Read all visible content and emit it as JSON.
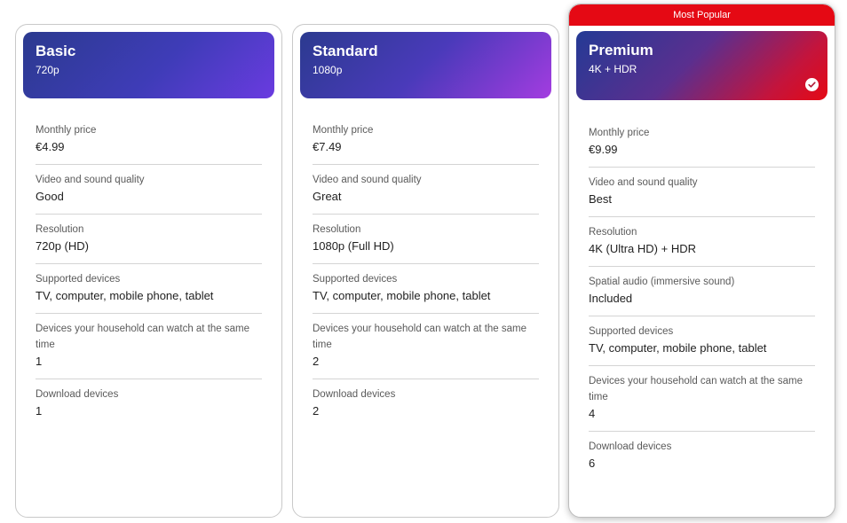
{
  "plans": [
    {
      "name": "Basic",
      "resolution_short": "720p",
      "features": [
        {
          "label": "Monthly price",
          "value": "€4.99"
        },
        {
          "label": "Video and sound quality",
          "value": "Good"
        },
        {
          "label": "Resolution",
          "value": "720p (HD)"
        },
        {
          "label": "Supported devices",
          "value": "TV, computer, mobile phone, tablet"
        },
        {
          "label": "Devices your household can watch at the same time",
          "value": "1"
        },
        {
          "label": "Download devices",
          "value": "1"
        }
      ]
    },
    {
      "name": "Standard",
      "resolution_short": "1080p",
      "features": [
        {
          "label": "Monthly price",
          "value": "€7.49"
        },
        {
          "label": "Video and sound quality",
          "value": "Great"
        },
        {
          "label": "Resolution",
          "value": "1080p (Full HD)"
        },
        {
          "label": "Supported devices",
          "value": "TV, computer, mobile phone, tablet"
        },
        {
          "label": "Devices your household can watch at the same time",
          "value": "2"
        },
        {
          "label": "Download devices",
          "value": "2"
        }
      ]
    },
    {
      "name": "Premium",
      "resolution_short": "4K + HDR",
      "badge": "Most Popular",
      "selected": true,
      "features": [
        {
          "label": "Monthly price",
          "value": "€9.99"
        },
        {
          "label": "Video and sound quality",
          "value": "Best"
        },
        {
          "label": "Resolution",
          "value": "4K (Ultra HD) + HDR"
        },
        {
          "label": "Spatial audio (immersive sound)",
          "value": "Included"
        },
        {
          "label": "Supported devices",
          "value": "TV, computer, mobile phone, tablet"
        },
        {
          "label": "Devices your household can watch at the same time",
          "value": "4"
        },
        {
          "label": "Download devices",
          "value": "6"
        }
      ]
    }
  ],
  "colors": {
    "brand_red": "#e50914",
    "header_blue": "#2b3a8f",
    "header_purple": "#6a3be0"
  },
  "icons": {
    "selected": "check-circle-icon"
  }
}
